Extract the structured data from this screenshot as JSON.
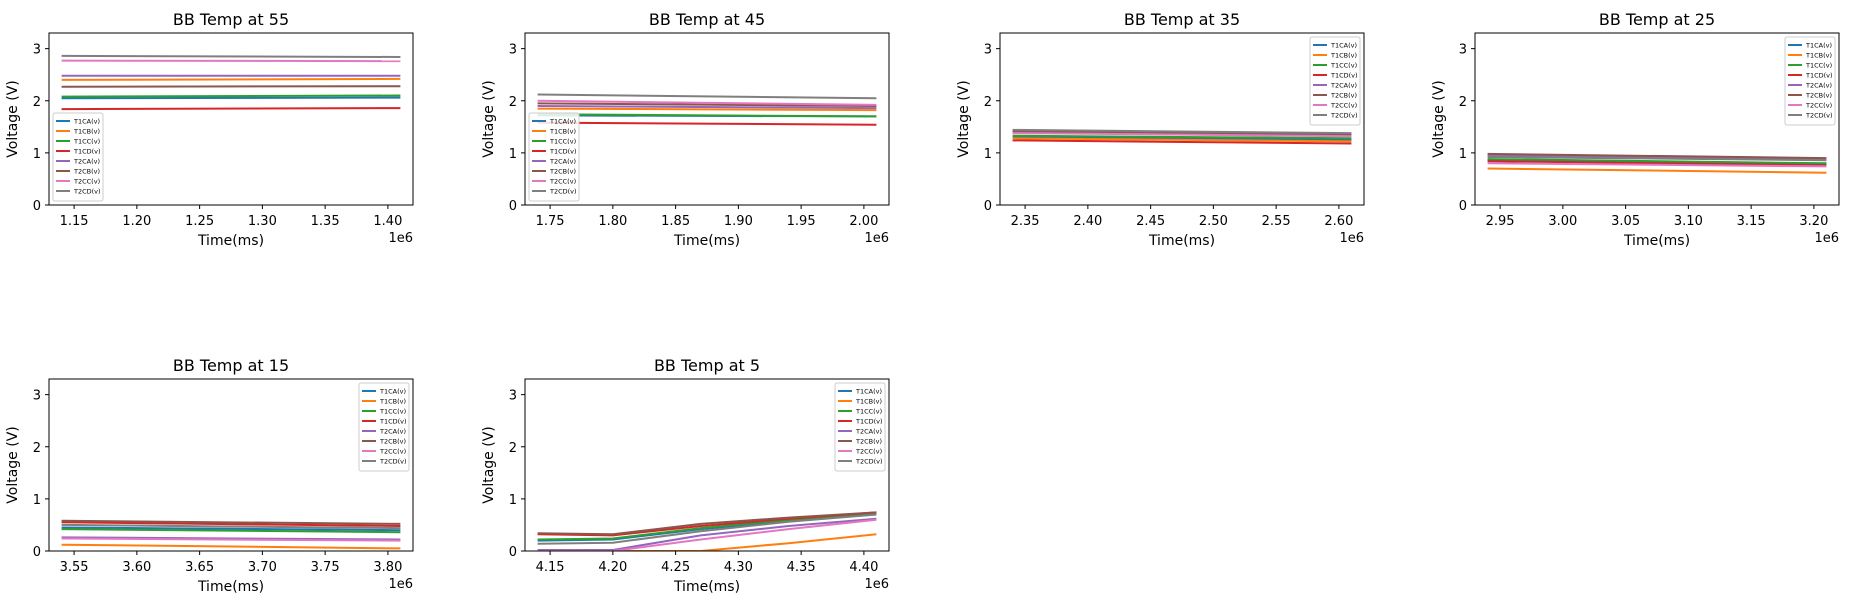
{
  "colors": {
    "T1CA(v)": "#1f77b4",
    "T1CB(v)": "#ff7f0e",
    "T1CC(v)": "#2ca02c",
    "T1CD(v)": "#d62728",
    "T2CA(v)": "#9467bd",
    "T2CB(v)": "#8c564b",
    "T2CC(v)": "#e377c2",
    "T2CD(v)": "#7f7f7f"
  },
  "chart_data": [
    {
      "type": "line",
      "title": "BB Temp at 55",
      "xlabel": "Time(ms)",
      "ylabel": "Voltage (V)",
      "x_offset_label": "1e6",
      "xlim": [
        1.13,
        1.42
      ],
      "ylim": [
        0,
        3.3
      ],
      "xticks": [
        "1.15",
        "1.20",
        "1.25",
        "1.30",
        "1.35",
        "1.40"
      ],
      "yticks": [
        "0",
        "1",
        "2",
        "3"
      ],
      "legend_loc": "lower-left",
      "x": [
        1.14,
        1.41
      ],
      "series": [
        {
          "name": "T1CA(v)",
          "values": [
            2.05,
            2.06
          ]
        },
        {
          "name": "T1CB(v)",
          "values": [
            2.4,
            2.42
          ]
        },
        {
          "name": "T1CC(v)",
          "values": [
            2.08,
            2.1
          ]
        },
        {
          "name": "T1CD(v)",
          "values": [
            1.84,
            1.86
          ]
        },
        {
          "name": "T2CA(v)",
          "values": [
            2.48,
            2.48
          ]
        },
        {
          "name": "T2CB(v)",
          "values": [
            2.27,
            2.28
          ]
        },
        {
          "name": "T2CC(v)",
          "values": [
            2.77,
            2.76
          ]
        },
        {
          "name": "T2CD(v)",
          "values": [
            2.86,
            2.84
          ]
        }
      ]
    },
    {
      "type": "line",
      "title": "BB Temp at 45",
      "xlabel": "Time(ms)",
      "ylabel": "Voltage (V)",
      "x_offset_label": "1e6",
      "xlim": [
        1.73,
        2.02
      ],
      "ylim": [
        0,
        3.3
      ],
      "xticks": [
        "1.75",
        "1.80",
        "1.85",
        "1.90",
        "1.95",
        "2.00"
      ],
      "yticks": [
        "0",
        "1",
        "2",
        "3"
      ],
      "legend_loc": "lower-left",
      "x": [
        1.74,
        2.01
      ],
      "series": [
        {
          "name": "T1CA(v)",
          "values": [
            1.72,
            1.7
          ]
        },
        {
          "name": "T1CB(v)",
          "values": [
            1.85,
            1.82
          ]
        },
        {
          "name": "T1CC(v)",
          "values": [
            1.74,
            1.7
          ]
        },
        {
          "name": "T1CD(v)",
          "values": [
            1.58,
            1.54
          ]
        },
        {
          "name": "T2CA(v)",
          "values": [
            1.9,
            1.86
          ]
        },
        {
          "name": "T2CB(v)",
          "values": [
            1.95,
            1.9
          ]
        },
        {
          "name": "T2CC(v)",
          "values": [
            2.0,
            1.92
          ]
        },
        {
          "name": "T2CD(v)",
          "values": [
            2.12,
            2.05
          ]
        }
      ]
    },
    {
      "type": "line",
      "title": "BB Temp at 35",
      "xlabel": "Time(ms)",
      "ylabel": "Voltage (V)",
      "x_offset_label": "1e6",
      "xlim": [
        2.33,
        2.62
      ],
      "ylim": [
        0,
        3.3
      ],
      "xticks": [
        "2.35",
        "2.40",
        "2.45",
        "2.50",
        "2.55",
        "2.60"
      ],
      "yticks": [
        "0",
        "1",
        "2",
        "3"
      ],
      "legend_loc": "upper-right",
      "x": [
        2.34,
        2.61
      ],
      "series": [
        {
          "name": "T1CA(v)",
          "values": [
            1.3,
            1.25
          ]
        },
        {
          "name": "T1CB(v)",
          "values": [
            1.28,
            1.22
          ]
        },
        {
          "name": "T1CC(v)",
          "values": [
            1.33,
            1.28
          ]
        },
        {
          "name": "T1CD(v)",
          "values": [
            1.24,
            1.18
          ]
        },
        {
          "name": "T2CA(v)",
          "values": [
            1.4,
            1.34
          ]
        },
        {
          "name": "T2CB(v)",
          "values": [
            1.42,
            1.36
          ]
        },
        {
          "name": "T2CC(v)",
          "values": [
            1.38,
            1.32
          ]
        },
        {
          "name": "T2CD(v)",
          "values": [
            1.44,
            1.38
          ]
        }
      ]
    },
    {
      "type": "line",
      "title": "BB Temp at 25",
      "xlabel": "Time(ms)",
      "ylabel": "Voltage (V)",
      "x_offset_label": "1e6",
      "xlim": [
        2.93,
        3.22
      ],
      "ylim": [
        0,
        3.3
      ],
      "xticks": [
        "2.95",
        "3.00",
        "3.05",
        "3.10",
        "3.15",
        "3.20"
      ],
      "yticks": [
        "0",
        "1",
        "2",
        "3"
      ],
      "legend_loc": "upper-right",
      "x": [
        2.94,
        3.21
      ],
      "series": [
        {
          "name": "T1CA(v)",
          "values": [
            0.86,
            0.78
          ]
        },
        {
          "name": "T1CB(v)",
          "values": [
            0.7,
            0.62
          ]
        },
        {
          "name": "T1CC(v)",
          "values": [
            0.88,
            0.8
          ]
        },
        {
          "name": "T1CD(v)",
          "values": [
            0.84,
            0.76
          ]
        },
        {
          "name": "T2CA(v)",
          "values": [
            0.95,
            0.88
          ]
        },
        {
          "name": "T2CB(v)",
          "values": [
            0.98,
            0.9
          ]
        },
        {
          "name": "T2CC(v)",
          "values": [
            0.8,
            0.74
          ]
        },
        {
          "name": "T2CD(v)",
          "values": [
            0.92,
            0.86
          ]
        }
      ]
    },
    {
      "type": "line",
      "title": "BB Temp at 15",
      "xlabel": "Time(ms)",
      "ylabel": "Voltage (V)",
      "x_offset_label": "1e6",
      "xlim": [
        3.53,
        3.82
      ],
      "ylim": [
        0,
        3.3
      ],
      "xticks": [
        "3.55",
        "3.60",
        "3.65",
        "3.70",
        "3.75",
        "3.80"
      ],
      "yticks": [
        "0",
        "1",
        "2",
        "3"
      ],
      "legend_loc": "upper-right",
      "x": [
        3.54,
        3.81
      ],
      "series": [
        {
          "name": "T1CA(v)",
          "values": [
            0.45,
            0.4
          ]
        },
        {
          "name": "T1CB(v)",
          "values": [
            0.12,
            0.05
          ]
        },
        {
          "name": "T1CC(v)",
          "values": [
            0.42,
            0.36
          ]
        },
        {
          "name": "T1CD(v)",
          "values": [
            0.55,
            0.48
          ]
        },
        {
          "name": "T2CA(v)",
          "values": [
            0.26,
            0.22
          ]
        },
        {
          "name": "T2CB(v)",
          "values": [
            0.58,
            0.52
          ]
        },
        {
          "name": "T2CC(v)",
          "values": [
            0.24,
            0.2
          ]
        },
        {
          "name": "T2CD(v)",
          "values": [
            0.5,
            0.44
          ]
        }
      ]
    },
    {
      "type": "line",
      "title": "BB Temp at 5",
      "xlabel": "Time(ms)",
      "ylabel": "Voltage (V)",
      "x_offset_label": "1e6",
      "xlim": [
        4.13,
        4.42
      ],
      "ylim": [
        0,
        3.3
      ],
      "xticks": [
        "4.15",
        "4.20",
        "4.25",
        "4.30",
        "4.35",
        "4.40"
      ],
      "yticks": [
        "0",
        "1",
        "2",
        "3"
      ],
      "legend_loc": "upper-right",
      "x": [
        4.14,
        4.2,
        4.27,
        4.34,
        4.41
      ],
      "series": [
        {
          "name": "T1CA(v)",
          "values": [
            0.2,
            0.22,
            0.42,
            0.58,
            0.7
          ]
        },
        {
          "name": "T1CB(v)",
          "values": [
            0.0,
            0.0,
            0.0,
            0.15,
            0.32
          ]
        },
        {
          "name": "T1CC(v)",
          "values": [
            0.22,
            0.24,
            0.44,
            0.6,
            0.72
          ]
        },
        {
          "name": "T1CD(v)",
          "values": [
            0.32,
            0.3,
            0.48,
            0.62,
            0.74
          ]
        },
        {
          "name": "T2CA(v)",
          "values": [
            0.02,
            0.02,
            0.3,
            0.48,
            0.62
          ]
        },
        {
          "name": "T2CB(v)",
          "values": [
            0.34,
            0.32,
            0.52,
            0.64,
            0.74
          ]
        },
        {
          "name": "T2CC(v)",
          "values": [
            0.0,
            0.0,
            0.22,
            0.42,
            0.6
          ]
        },
        {
          "name": "T2CD(v)",
          "values": [
            0.14,
            0.16,
            0.38,
            0.56,
            0.7
          ]
        }
      ]
    }
  ]
}
